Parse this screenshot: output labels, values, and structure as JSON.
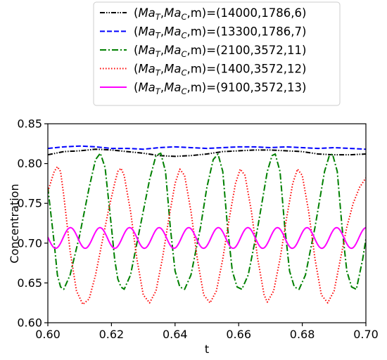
{
  "chart_data": {
    "type": "line",
    "xlabel": "t",
    "ylabel": "Concentration",
    "xlim": [
      0.6,
      0.7
    ],
    "ylim": [
      0.6,
      0.85
    ],
    "xticks": [
      "0.60",
      "0.62",
      "0.64",
      "0.66",
      "0.68",
      "0.70"
    ],
    "yticks": [
      "0.60",
      "0.65",
      "0.70",
      "0.75",
      "0.80",
      "0.85"
    ],
    "grid": false,
    "legend_position": "top-center, above plot",
    "series": [
      {
        "name": "(Ma_T,Ma_C,m)=(14000,1786,6)",
        "legend_parts": [
          "(",
          "Ma",
          "T",
          ",",
          "Ma",
          "C",
          ",m)=(14000,1786,6)"
        ],
        "color": "#000000",
        "line_style": "dash-dot-dot",
        "points": [
          [
            0.6,
            0.811
          ],
          [
            0.605,
            0.815
          ],
          [
            0.61,
            0.816
          ],
          [
            0.615,
            0.818
          ],
          [
            0.62,
            0.817
          ],
          [
            0.625,
            0.815
          ],
          [
            0.63,
            0.813
          ],
          [
            0.635,
            0.81
          ],
          [
            0.64,
            0.809
          ],
          [
            0.645,
            0.81
          ],
          [
            0.65,
            0.812
          ],
          [
            0.655,
            0.815
          ],
          [
            0.66,
            0.816
          ],
          [
            0.665,
            0.817
          ],
          [
            0.67,
            0.817
          ],
          [
            0.675,
            0.816
          ],
          [
            0.68,
            0.815
          ],
          [
            0.685,
            0.812
          ],
          [
            0.69,
            0.811
          ],
          [
            0.695,
            0.811
          ],
          [
            0.7,
            0.812
          ]
        ]
      },
      {
        "name": "(Ma_T,Ma_C,m)=(13300,1786,7)",
        "legend_parts": [
          "(",
          "Ma",
          "T",
          ",",
          "Ma",
          "C",
          ",m)=(13300,1786,7)"
        ],
        "color": "#0000ff",
        "line_style": "dashed",
        "points": [
          [
            0.6,
            0.819
          ],
          [
            0.605,
            0.821
          ],
          [
            0.61,
            0.822
          ],
          [
            0.615,
            0.821
          ],
          [
            0.62,
            0.819
          ],
          [
            0.625,
            0.819
          ],
          [
            0.63,
            0.818
          ],
          [
            0.635,
            0.82
          ],
          [
            0.64,
            0.821
          ],
          [
            0.645,
            0.82
          ],
          [
            0.65,
            0.819
          ],
          [
            0.655,
            0.82
          ],
          [
            0.66,
            0.821
          ],
          [
            0.665,
            0.821
          ],
          [
            0.67,
            0.82
          ],
          [
            0.675,
            0.821
          ],
          [
            0.68,
            0.82
          ],
          [
            0.685,
            0.819
          ],
          [
            0.69,
            0.82
          ],
          [
            0.695,
            0.819
          ],
          [
            0.7,
            0.818
          ]
        ]
      },
      {
        "name": "(Ma_T,Ma_C,m)=(2100,3572,11)",
        "legend_parts": [
          "(",
          "Ma",
          "T",
          ",",
          "Ma",
          "C",
          ",m)=(2100,3572,11)"
        ],
        "color": "#008000",
        "line_style": "dash-dot",
        "points": [
          [
            0.6,
            0.77
          ],
          [
            0.602,
            0.7
          ],
          [
            0.603,
            0.66
          ],
          [
            0.604,
            0.645
          ],
          [
            0.605,
            0.642
          ],
          [
            0.607,
            0.66
          ],
          [
            0.61,
            0.71
          ],
          [
            0.613,
            0.77
          ],
          [
            0.615,
            0.805
          ],
          [
            0.6165,
            0.813
          ],
          [
            0.618,
            0.795
          ],
          [
            0.62,
            0.72
          ],
          [
            0.621,
            0.68
          ],
          [
            0.622,
            0.655
          ],
          [
            0.623,
            0.645
          ],
          [
            0.624,
            0.642
          ],
          [
            0.626,
            0.66
          ],
          [
            0.629,
            0.72
          ],
          [
            0.632,
            0.78
          ],
          [
            0.634,
            0.81
          ],
          [
            0.6355,
            0.813
          ],
          [
            0.637,
            0.79
          ],
          [
            0.6385,
            0.72
          ],
          [
            0.64,
            0.665
          ],
          [
            0.6415,
            0.645
          ],
          [
            0.643,
            0.642
          ],
          [
            0.645,
            0.66
          ],
          [
            0.648,
            0.72
          ],
          [
            0.65,
            0.77
          ],
          [
            0.652,
            0.805
          ],
          [
            0.6535,
            0.812
          ],
          [
            0.655,
            0.79
          ],
          [
            0.6565,
            0.72
          ],
          [
            0.658,
            0.665
          ],
          [
            0.6595,
            0.645
          ],
          [
            0.661,
            0.642
          ],
          [
            0.663,
            0.66
          ],
          [
            0.666,
            0.72
          ],
          [
            0.669,
            0.79
          ],
          [
            0.6705,
            0.81
          ],
          [
            0.6715,
            0.812
          ],
          [
            0.673,
            0.79
          ],
          [
            0.6745,
            0.72
          ],
          [
            0.676,
            0.665
          ],
          [
            0.6775,
            0.645
          ],
          [
            0.679,
            0.642
          ],
          [
            0.681,
            0.66
          ],
          [
            0.684,
            0.72
          ],
          [
            0.687,
            0.79
          ],
          [
            0.6885,
            0.81
          ],
          [
            0.6895,
            0.812
          ],
          [
            0.691,
            0.79
          ],
          [
            0.6925,
            0.72
          ],
          [
            0.694,
            0.665
          ],
          [
            0.6955,
            0.645
          ],
          [
            0.697,
            0.642
          ],
          [
            0.699,
            0.68
          ],
          [
            0.7,
            0.705
          ]
        ]
      },
      {
        "name": "(Ma_T,Ma_C,m)=(1400,3572,12)",
        "legend_parts": [
          "(",
          "Ma",
          "T",
          ",",
          "Ma",
          "C",
          ",m)=(1400,3572,12)"
        ],
        "color": "#ff0000",
        "line_style": "dotted",
        "points": [
          [
            0.6,
            0.765
          ],
          [
            0.602,
            0.79
          ],
          [
            0.603,
            0.796
          ],
          [
            0.604,
            0.79
          ],
          [
            0.605,
            0.76
          ],
          [
            0.607,
            0.69
          ],
          [
            0.609,
            0.64
          ],
          [
            0.611,
            0.623
          ],
          [
            0.613,
            0.63
          ],
          [
            0.615,
            0.66
          ],
          [
            0.617,
            0.7
          ],
          [
            0.619,
            0.74
          ],
          [
            0.621,
            0.775
          ],
          [
            0.622,
            0.79
          ],
          [
            0.623,
            0.794
          ],
          [
            0.624,
            0.785
          ],
          [
            0.626,
            0.74
          ],
          [
            0.628,
            0.68
          ],
          [
            0.63,
            0.635
          ],
          [
            0.632,
            0.625
          ],
          [
            0.634,
            0.64
          ],
          [
            0.636,
            0.68
          ],
          [
            0.638,
            0.73
          ],
          [
            0.64,
            0.775
          ],
          [
            0.6415,
            0.793
          ],
          [
            0.643,
            0.785
          ],
          [
            0.645,
            0.74
          ],
          [
            0.647,
            0.68
          ],
          [
            0.649,
            0.635
          ],
          [
            0.651,
            0.625
          ],
          [
            0.653,
            0.64
          ],
          [
            0.655,
            0.68
          ],
          [
            0.657,
            0.73
          ],
          [
            0.659,
            0.775
          ],
          [
            0.6605,
            0.793
          ],
          [
            0.662,
            0.785
          ],
          [
            0.664,
            0.74
          ],
          [
            0.666,
            0.68
          ],
          [
            0.668,
            0.635
          ],
          [
            0.669,
            0.626
          ],
          [
            0.671,
            0.64
          ],
          [
            0.673,
            0.68
          ],
          [
            0.675,
            0.73
          ],
          [
            0.677,
            0.775
          ],
          [
            0.6785,
            0.793
          ],
          [
            0.68,
            0.785
          ],
          [
            0.682,
            0.74
          ],
          [
            0.684,
            0.68
          ],
          [
            0.686,
            0.635
          ],
          [
            0.688,
            0.625
          ],
          [
            0.69,
            0.64
          ],
          [
            0.692,
            0.68
          ],
          [
            0.694,
            0.72
          ],
          [
            0.696,
            0.75
          ],
          [
            0.698,
            0.77
          ],
          [
            0.7,
            0.782
          ]
        ]
      },
      {
        "name": "(Ma_T,Ma_C,m)=(9100,3572,13)",
        "legend_parts": [
          "(",
          "Ma",
          "T",
          ",",
          "Ma",
          "C",
          ",m)=(9100,3572,13)"
        ],
        "color": "#ff00ff",
        "line_style": "solid",
        "wave": {
          "mean": 0.7065,
          "amplitude": 0.013,
          "period": 0.0093,
          "peak_t": 0.6071,
          "t_start": 0.6,
          "t_end": 0.7
        }
      }
    ]
  }
}
